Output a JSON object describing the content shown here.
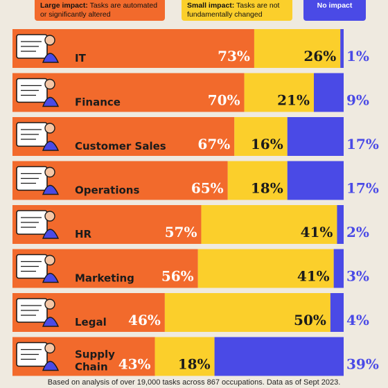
{
  "legend": {
    "large_title": "Large impact:",
    "large_desc": "Tasks are automated or significantly altered",
    "small_title": "Small impact:",
    "small_desc": "Tasks are not fundamentally changed",
    "none_title": "No impact"
  },
  "footnote": "Based on analysis of over 19,000 tasks across 867 occupations. Data as of Sept 2023.",
  "colors": {
    "large": "#f26a2c",
    "small": "#fbcf2b",
    "none": "#4a4ae6",
    "background": "#efeae0"
  },
  "chart_data": {
    "type": "bar",
    "stacked": true,
    "orientation": "horizontal",
    "categories": [
      "IT",
      "Finance",
      "Customer Sales",
      "Operations",
      "HR",
      "Marketing",
      "Legal",
      "Supply Chain"
    ],
    "series": [
      {
        "name": "Large impact",
        "values": [
          73,
          70,
          67,
          65,
          57,
          56,
          46,
          43
        ],
        "labels": [
          "73%",
          "70%",
          "67%",
          "65%",
          "57%",
          "56%",
          "46%",
          "43%"
        ]
      },
      {
        "name": "Small impact",
        "values": [
          26,
          21,
          16,
          18,
          41,
          41,
          50,
          18
        ],
        "labels": [
          "26%",
          "21%",
          "16%",
          "18%",
          "41%",
          "41%",
          "50%",
          "18%"
        ]
      },
      {
        "name": "No impact",
        "values": [
          1,
          9,
          17,
          17,
          2,
          3,
          4,
          39
        ],
        "labels": [
          "1%",
          "9%",
          "17%",
          "17%",
          "2%",
          "3%",
          "4%",
          "39%"
        ]
      }
    ],
    "icons": [
      "developer-at-screen-icon",
      "finance-coins-icon",
      "sales-parcel-icon",
      "operations-schedule-icon",
      "hr-interview-icon",
      "marketing-chart-icon",
      "legal-scales-icon",
      "supply-chain-scooter-icon"
    ]
  }
}
